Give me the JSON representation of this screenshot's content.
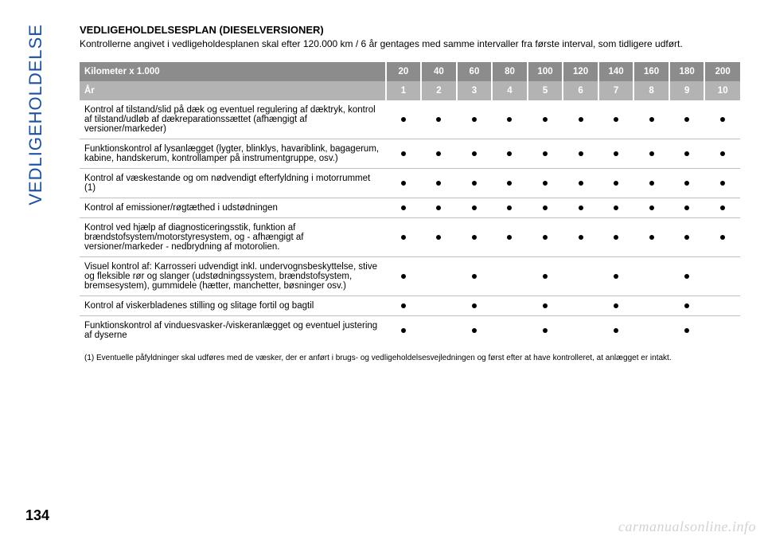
{
  "vertical_label": "VEDLIGEHOLDELSE",
  "title": "VEDLIGEHOLDELSESPLAN (DIESELVERSIONER)",
  "intro": "Kontrollerne angivet i vedligeholdesplanen skal efter 120.000 km / 6 år gentages med samme intervaller fra første interval, som tidligere udført.",
  "table": {
    "header_row1_label": "Kilometer x 1.000",
    "header_row1_values": [
      "20",
      "40",
      "60",
      "80",
      "100",
      "120",
      "140",
      "160",
      "180",
      "200"
    ],
    "header_row2_label": "År",
    "header_row2_values": [
      "1",
      "2",
      "3",
      "4",
      "5",
      "6",
      "7",
      "8",
      "9",
      "10"
    ],
    "rows": [
      {
        "desc": "Kontrol af tilstand/slid på dæk og eventuel regulering af dæktryk, kontrol af tilstand/udløb af dækreparationssættet (afhængigt af versioner/markeder)",
        "dots": [
          true,
          true,
          true,
          true,
          true,
          true,
          true,
          true,
          true,
          true
        ]
      },
      {
        "desc": "Funktionskontrol af lysanlægget (lygter, blinklys, havariblink, bagagerum, kabine, handskerum, kontrollamper på instrumentgruppe, osv.)",
        "dots": [
          true,
          true,
          true,
          true,
          true,
          true,
          true,
          true,
          true,
          true
        ]
      },
      {
        "desc": "Kontrol af væskestande og om nødvendigt efterfyldning i motorrummet (1)",
        "dots": [
          true,
          true,
          true,
          true,
          true,
          true,
          true,
          true,
          true,
          true
        ]
      },
      {
        "desc": "Kontrol af emissioner/røgtæthed i udstødningen",
        "dots": [
          true,
          true,
          true,
          true,
          true,
          true,
          true,
          true,
          true,
          true
        ]
      },
      {
        "desc": "Kontrol ved hjælp af diagnosticeringsstik, funktion af brændstofsystem/motorstyresystem, og - afhængigt af versioner/markeder - nedbrydning af motorolien.",
        "dots": [
          true,
          true,
          true,
          true,
          true,
          true,
          true,
          true,
          true,
          true
        ]
      },
      {
        "desc": "Visuel kontrol af: Karrosseri udvendigt inkl. undervognsbeskyttelse, stive og fleksible rør og slanger (udstødningssystem, brændstofsystem, bremsesystem), gummidele (hætter, manchetter, bøsninger osv.)",
        "dots": [
          true,
          false,
          true,
          false,
          true,
          false,
          true,
          false,
          true,
          false
        ]
      },
      {
        "desc": "Kontrol af viskerbladenes stilling og slitage fortil og bagtil",
        "dots": [
          true,
          false,
          true,
          false,
          true,
          false,
          true,
          false,
          true,
          false
        ]
      },
      {
        "desc": "Funktionskontrol af vinduesvasker-/viskeranlægget og eventuel justering af dyserne",
        "dots": [
          true,
          false,
          true,
          false,
          true,
          false,
          true,
          false,
          true,
          false
        ]
      }
    ],
    "colors": {
      "header1_bg": "#8c8c8c",
      "header2_bg": "#b3b3b3",
      "header_text": "#ffffff",
      "row_border": "#bfbfbf",
      "dot_color": "#000000"
    }
  },
  "footnote": "(1) Eventuelle påfyldninger skal udføres med de væsker, der er anført i brugs- og vedligeholdelsesvejledningen og først efter at have kontrolleret, at anlægget er intakt.",
  "page_number": "134",
  "watermark": "carmanualsonline.info"
}
